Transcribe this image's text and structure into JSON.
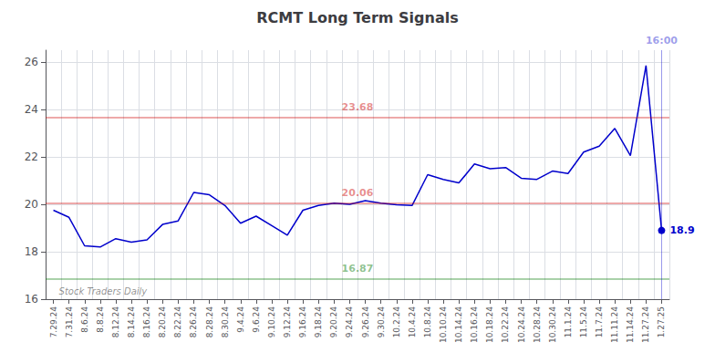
{
  "chart_data": {
    "type": "line",
    "title": "RCMT Long Term Signals",
    "categories": [
      "7.29.24",
      "7.31.24",
      "8.6.24",
      "8.8.24",
      "8.12.24",
      "8.14.24",
      "8.16.24",
      "8.20.24",
      "8.22.24",
      "8.26.24",
      "8.28.24",
      "8.30.24",
      "9.4.24",
      "9.6.24",
      "9.10.24",
      "9.12.24",
      "9.16.24",
      "9.18.24",
      "9.20.24",
      "9.24.24",
      "9.26.24",
      "9.30.24",
      "10.2.24",
      "10.4.24",
      "10.8.24",
      "10.10.24",
      "10.14.24",
      "10.16.24",
      "10.18.24",
      "10.22.24",
      "10.24.24",
      "10.28.24",
      "10.30.24",
      "11.1.24",
      "11.5.24",
      "11.7.24",
      "11.11.24",
      "11.14.24",
      "11.27.24",
      "1.27.25"
    ],
    "values": [
      19.75,
      19.45,
      18.25,
      18.2,
      18.55,
      18.4,
      18.5,
      19.15,
      19.3,
      20.5,
      20.4,
      19.95,
      19.2,
      19.5,
      19.1,
      18.7,
      19.75,
      19.95,
      20.05,
      20.0,
      20.15,
      20.05,
      19.98,
      19.95,
      21.25,
      21.05,
      20.9,
      21.7,
      21.5,
      21.55,
      21.1,
      21.05,
      21.4,
      21.3,
      22.2,
      22.45,
      23.2,
      22.05,
      25.85,
      18.9
    ],
    "color": "#0000cc",
    "ylim": [
      16.0,
      26.5
    ],
    "yticks": [
      16,
      18,
      20,
      22,
      24,
      26
    ],
    "grid": true,
    "reference_lines": [
      {
        "value": 23.68,
        "label": "23.68",
        "color": "#cc0000"
      },
      {
        "value": 20.06,
        "label": "20.06",
        "color": "#cc0000"
      },
      {
        "value": 16.87,
        "label": "16.87",
        "color": "#007700"
      }
    ],
    "vline_label": "16:00",
    "end_label": "18.9",
    "watermark": "Stock Traders Daily"
  }
}
